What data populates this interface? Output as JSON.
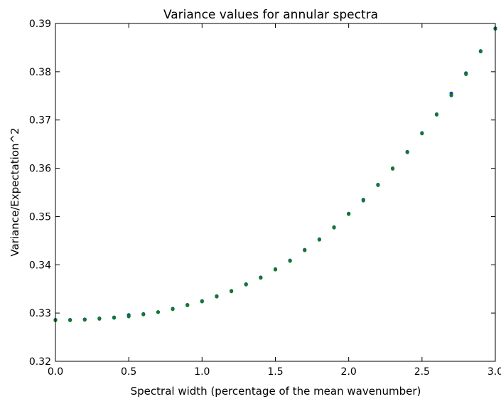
{
  "chart_data": {
    "type": "scatter",
    "title": "Variance values for annular spectra",
    "xlabel": "Spectral width (percentage of the mean wavenumber)",
    "ylabel": "Variance/Expectation^2",
    "xlim": [
      0.0,
      3.0
    ],
    "ylim": [
      0.32,
      0.39
    ],
    "xticks": [
      0.0,
      0.5,
      1.0,
      1.5,
      2.0,
      2.5,
      3.0
    ],
    "xtick_labels": [
      "0.0",
      "0.5",
      "1.0",
      "1.5",
      "2.0",
      "2.5",
      "3.0"
    ],
    "yticks": [
      0.32,
      0.33,
      0.34,
      0.35,
      0.36,
      0.37,
      0.38,
      0.39
    ],
    "ytick_labels": [
      "0.32",
      "0.33",
      "0.34",
      "0.35",
      "0.36",
      "0.37",
      "0.38",
      "0.39"
    ],
    "grid": false,
    "legend": false,
    "series": [
      {
        "color": "#1f3fb0",
        "x": [
          0.0,
          0.1,
          0.2,
          0.3,
          0.4,
          0.5,
          0.6,
          0.7,
          0.8,
          0.9,
          1.0,
          1.1,
          1.2,
          1.3,
          1.4,
          1.5,
          1.6,
          1.7,
          1.8,
          1.9,
          2.0,
          2.1,
          2.2,
          2.3,
          2.4,
          2.5,
          2.6,
          2.7,
          2.8,
          2.9,
          3.0
        ],
        "y": [
          0.3286,
          0.3286,
          0.3287,
          0.3289,
          0.3291,
          0.3296,
          0.3298,
          0.3302,
          0.3309,
          0.3317,
          0.3325,
          0.3335,
          0.3346,
          0.336,
          0.3374,
          0.3391,
          0.3409,
          0.3431,
          0.3453,
          0.3478,
          0.3506,
          0.3535,
          0.3566,
          0.36,
          0.3634,
          0.3673,
          0.3712,
          0.3755,
          0.3797,
          0.3843,
          0.389
        ]
      },
      {
        "color": "#107a2a",
        "x": [
          0.0,
          0.1,
          0.2,
          0.3,
          0.4,
          0.5,
          0.6,
          0.7,
          0.8,
          0.9,
          1.0,
          1.1,
          1.2,
          1.3,
          1.4,
          1.5,
          1.6,
          1.7,
          1.8,
          1.9,
          2.0,
          2.1,
          2.2,
          2.3,
          2.4,
          2.5,
          2.6,
          2.7,
          2.8,
          2.9,
          3.0
        ],
        "y": [
          0.3285,
          0.3285,
          0.3286,
          0.3288,
          0.329,
          0.3293,
          0.3297,
          0.3302,
          0.3308,
          0.3316,
          0.3324,
          0.3334,
          0.3345,
          0.3359,
          0.3373,
          0.339,
          0.3408,
          0.343,
          0.3452,
          0.3477,
          0.3505,
          0.3533,
          0.3565,
          0.3599,
          0.3633,
          0.3672,
          0.3711,
          0.3751,
          0.3795,
          0.3842,
          0.3889
        ]
      }
    ]
  }
}
